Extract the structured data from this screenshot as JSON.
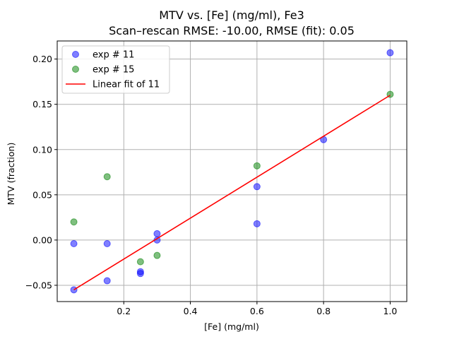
{
  "chart_data": {
    "type": "scatter",
    "title": "MTV vs. [Fe] (mg/ml), Fe3",
    "subtitle": "Scan–rescan RMSE: -10.00, RMSE (fit): 0.05",
    "xlabel": "[Fe] (mg/ml)",
    "ylabel": "MTV (fraction)",
    "xlim": [
      0.0,
      1.05
    ],
    "ylim": [
      -0.068,
      0.22
    ],
    "xticks": [
      0.2,
      0.4,
      0.6,
      0.8,
      1.0
    ],
    "xtick_labels": [
      "0.2",
      "0.4",
      "0.6",
      "0.8",
      "1.0"
    ],
    "yticks": [
      -0.05,
      0.0,
      0.05,
      0.1,
      0.15,
      0.2
    ],
    "ytick_labels": [
      "−0.05",
      "0.00",
      "0.05",
      "0.10",
      "0.15",
      "0.20"
    ],
    "grid": true,
    "legend_position": "top-left",
    "series": [
      {
        "name": "exp # 11",
        "kind": "points",
        "color": "#0000ff",
        "points": [
          {
            "x": 0.05,
            "y": -0.055
          },
          {
            "x": 0.05,
            "y": -0.004
          },
          {
            "x": 0.15,
            "y": -0.045
          },
          {
            "x": 0.15,
            "y": -0.004
          },
          {
            "x": 0.25,
            "y": -0.035
          },
          {
            "x": 0.25,
            "y": -0.037
          },
          {
            "x": 0.3,
            "y": 0.007
          },
          {
            "x": 0.3,
            "y": 0.0
          },
          {
            "x": 0.6,
            "y": 0.059
          },
          {
            "x": 0.6,
            "y": 0.018
          },
          {
            "x": 0.8,
            "y": 0.111
          },
          {
            "x": 1.0,
            "y": 0.207
          }
        ]
      },
      {
        "name": "exp # 15",
        "kind": "points",
        "color": "#008000",
        "points": [
          {
            "x": 0.05,
            "y": 0.02
          },
          {
            "x": 0.15,
            "y": 0.07
          },
          {
            "x": 0.25,
            "y": -0.024
          },
          {
            "x": 0.3,
            "y": -0.017
          },
          {
            "x": 0.6,
            "y": 0.082
          },
          {
            "x": 1.0,
            "y": 0.161
          }
        ]
      },
      {
        "name": "Linear fit of 11",
        "kind": "line",
        "color": "#ff0000",
        "points": [
          {
            "x": 0.05,
            "y": -0.055
          },
          {
            "x": 1.0,
            "y": 0.16
          }
        ]
      }
    ]
  }
}
